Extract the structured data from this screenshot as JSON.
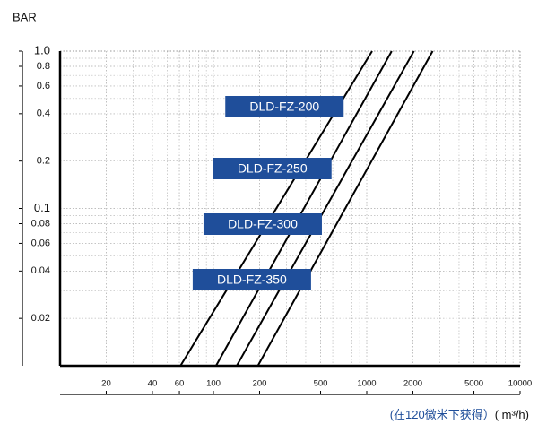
{
  "chart_data": {
    "type": "line",
    "y_label": "BAR",
    "x_label_note": "(在120微米下获得）",
    "x_label": "( m³/h)",
    "log_x": true,
    "log_y": true,
    "grid": true,
    "xlim": [
      10,
      10000
    ],
    "ylim": [
      0.01,
      1
    ],
    "xticks": [
      20,
      40,
      60,
      100,
      200,
      500,
      1000,
      2000,
      5000,
      10000
    ],
    "yticks": [
      {
        "value": 1,
        "label": "1.0"
      },
      0.8,
      0.6,
      0.4,
      0.2,
      0.1,
      0.08,
      0.06,
      0.04,
      0.02
    ],
    "label_color": "#1f4e9a",
    "series": [
      {
        "name": "DLD-FZ-200",
        "color": "#000000",
        "x": [
          61,
          1084
        ],
        "values": [
          0.01,
          1
        ]
      },
      {
        "name": "DLD-FZ-250",
        "color": "#000000",
        "x": [
          104,
          1455
        ],
        "values": [
          0.01,
          1
        ]
      },
      {
        "name": "DLD-FZ-300",
        "color": "#000000",
        "x": [
          142,
          2030
        ],
        "values": [
          0.01,
          1
        ]
      },
      {
        "name": "DLD-FZ-350",
        "color": "#000000",
        "x": [
          195,
          2690
        ],
        "values": [
          0.01,
          1
        ]
      }
    ]
  }
}
